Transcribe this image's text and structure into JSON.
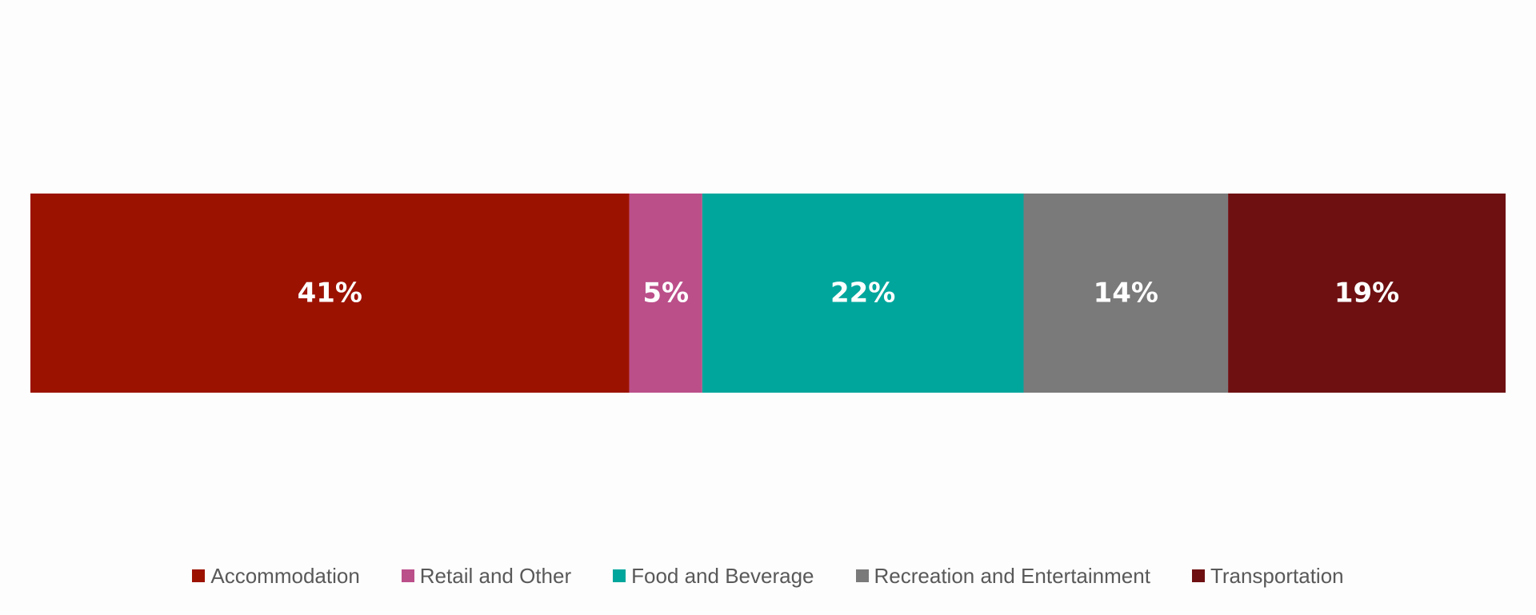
{
  "chart_data": {
    "type": "bar",
    "orientation": "horizontal",
    "stacked": true,
    "title": "",
    "xlabel": "",
    "ylabel": "",
    "xlim": [
      0,
      100
    ],
    "grid": false,
    "legend_position": "bottom",
    "categories": [
      ""
    ],
    "series": [
      {
        "name": "Accommodation",
        "values": [
          41
        ],
        "label": "41%",
        "color": "#9c1200"
      },
      {
        "name": "Retail and Other",
        "values": [
          5
        ],
        "label": "5%",
        "color": "#bb4f8a"
      },
      {
        "name": "Food and Beverage",
        "values": [
          22
        ],
        "label": "22%",
        "color": "#00a69c"
      },
      {
        "name": "Recreation and Entertainment",
        "values": [
          14
        ],
        "label": "14%",
        "color": "#7a7a7a"
      },
      {
        "name": "Transportation",
        "values": [
          19
        ],
        "label": "19%",
        "color": "#6e1012"
      }
    ]
  }
}
